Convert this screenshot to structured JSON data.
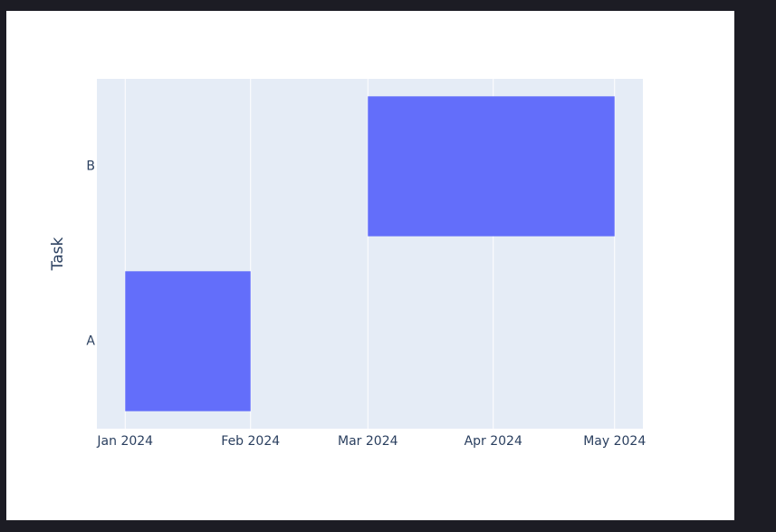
{
  "chart_data": {
    "type": "timeline",
    "categories": [
      "A",
      "B"
    ],
    "start": [
      "2024-01",
      "2024-03"
    ],
    "end": [
      "2024-02",
      "2024-05"
    ],
    "color": "#636efa",
    "ylabel": "Task",
    "xlim": [
      "2023-12-25",
      "2024-05-08"
    ],
    "xticks": [
      {
        "value": "2024-01",
        "label": "Jan 2024"
      },
      {
        "value": "2024-02",
        "label": "Feb 2024"
      },
      {
        "value": "2024-03",
        "label": "Mar 2024"
      },
      {
        "value": "2024-04",
        "label": "Apr 2024"
      },
      {
        "value": "2024-05",
        "label": "May 2024"
      }
    ],
    "grid": true
  }
}
